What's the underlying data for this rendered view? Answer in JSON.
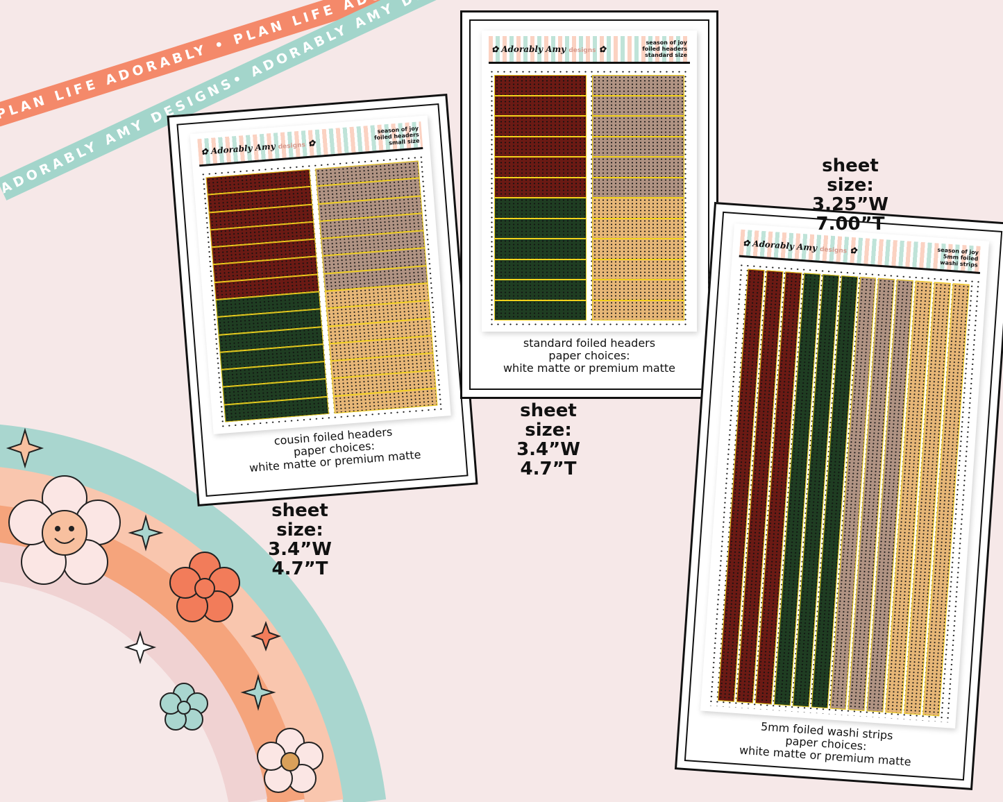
{
  "ribbons": [
    {
      "text": "PLAN LIFE ADORABLY • PLAN LIFE ADORABLY • PLAN LIFE ADORABLY •",
      "color": "#f4896a"
    },
    {
      "text": "ADORABLY AMY DESIGNS• ADORABLY AMY DESIGNS• ADORABLY AMY DESIGNS•",
      "color": "#a3d5cb"
    }
  ],
  "brand": {
    "logo": "Adorably Amy",
    "logo_suffix": "designs"
  },
  "colors": {
    "maroon": "#6b1a14",
    "green": "#1f3d22",
    "taupe": "#b09383",
    "tan": "#e6b677",
    "foil": "#f2d21b",
    "bg": "#f6e8e8"
  },
  "sheets": [
    {
      "id": "small",
      "header": [
        "season of joy",
        "foiled headers",
        "small size"
      ],
      "caption": [
        "cousin foiled headers",
        "paper choices:",
        "white matte or premium matte"
      ],
      "size": [
        "sheet size:",
        "3.4”W",
        "4.7”T"
      ],
      "layout": "rows",
      "left": [
        "maroon",
        "maroon",
        "maroon",
        "maroon",
        "maroon",
        "maroon",
        "maroon",
        "green",
        "green",
        "green",
        "green",
        "green",
        "green",
        "green"
      ],
      "right": [
        "taupe",
        "taupe",
        "taupe",
        "taupe",
        "taupe",
        "taupe",
        "taupe",
        "tan",
        "tan",
        "tan",
        "tan",
        "tan",
        "tan",
        "tan"
      ]
    },
    {
      "id": "standard",
      "header": [
        "season of joy",
        "foiled headers",
        "standard size"
      ],
      "caption": [
        "standard foiled headers",
        "paper choices:",
        "white matte or premium matte"
      ],
      "size": [
        "sheet size:",
        "3.4”W",
        "4.7”T"
      ],
      "layout": "rows",
      "left": [
        "maroon",
        "maroon",
        "maroon",
        "maroon",
        "maroon",
        "maroon",
        "green",
        "green",
        "green",
        "green",
        "green",
        "green"
      ],
      "right": [
        "taupe",
        "taupe",
        "taupe",
        "taupe",
        "taupe",
        "taupe",
        "tan",
        "tan",
        "tan",
        "tan",
        "tan",
        "tan"
      ]
    },
    {
      "id": "washi",
      "header": [
        "season of joy",
        "5mm foiled",
        "washi strips"
      ],
      "caption": [
        "5mm foiled washi strips",
        "paper choices:",
        "white matte or premium matte"
      ],
      "size": [
        "sheet size:",
        "3.25”W",
        "7.00”T"
      ],
      "layout": "strips",
      "strips": [
        "maroon",
        "maroon",
        "maroon",
        "green",
        "green",
        "green",
        "taupe",
        "taupe",
        "taupe",
        "tan",
        "tan",
        "tan"
      ]
    }
  ]
}
